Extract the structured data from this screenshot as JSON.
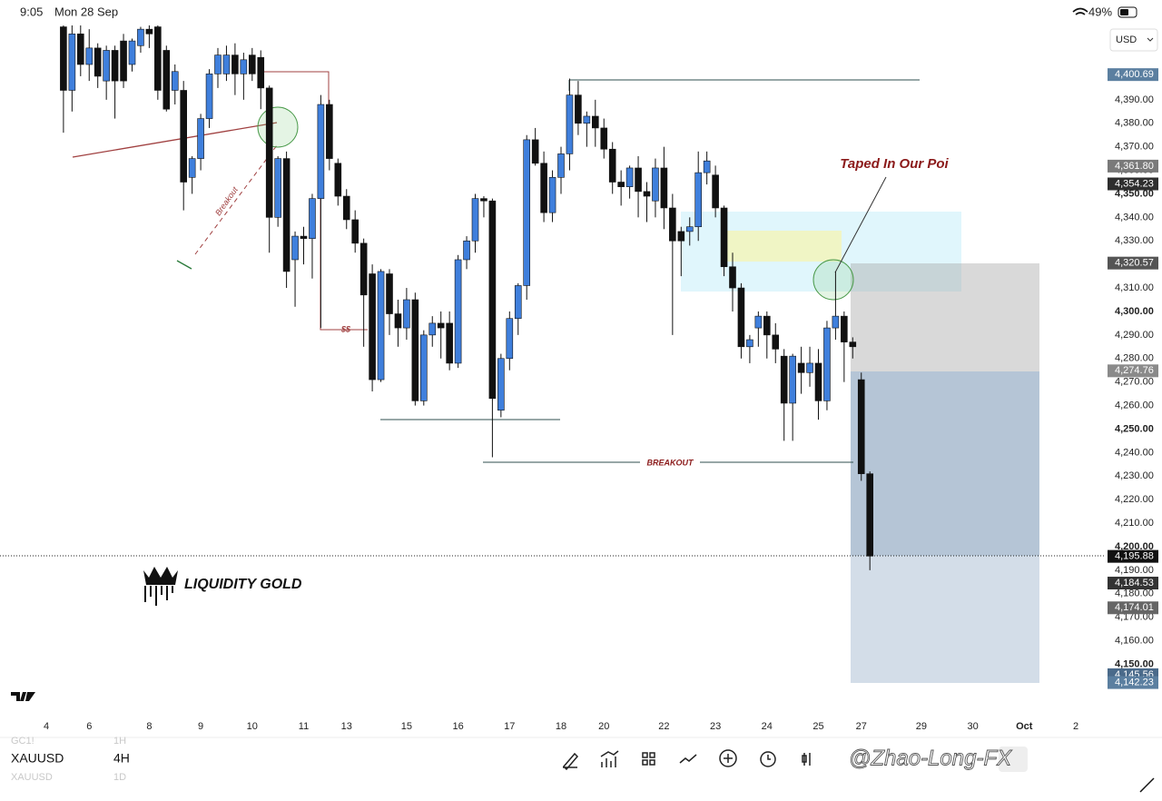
{
  "status_bar": {
    "time": "9:05",
    "date": "Mon 28 Sep",
    "battery": "49%"
  },
  "currency": "USD",
  "symbols": [
    {
      "name": "GC1!",
      "interval": "1H"
    },
    {
      "name": "XAUUSD",
      "interval": "4H"
    },
    {
      "name": "XAUUSD",
      "interval": "1D"
    }
  ],
  "watermark": "@Zhao-Long-FX",
  "chart_data": {
    "type": "candlestick",
    "categories": [
      "4",
      null,
      null,
      null,
      null,
      "6",
      null,
      null,
      null,
      null,
      null,
      null,
      "8",
      null,
      null,
      null,
      null,
      null,
      "9",
      null,
      null,
      null,
      null,
      null,
      "10",
      null,
      null,
      null,
      null,
      null,
      "11",
      null,
      null,
      null,
      null,
      "13",
      null,
      null,
      null,
      null,
      null,
      null,
      "15",
      null,
      null,
      null,
      null,
      null,
      "16",
      null,
      null,
      null,
      null,
      null,
      "17",
      null,
      null,
      null,
      null,
      null,
      "18",
      null,
      null,
      null,
      null,
      "20",
      null,
      null,
      null,
      null,
      null,
      null,
      "22",
      null,
      null,
      null,
      null,
      null,
      "23",
      null,
      null,
      null,
      null,
      null,
      "24",
      null,
      null,
      null,
      null,
      null,
      "25",
      null,
      null,
      null,
      null,
      "27",
      null,
      null,
      null,
      null,
      null,
      null,
      "29",
      null,
      null,
      null,
      null,
      null,
      "30",
      null,
      null,
      null,
      null,
      null,
      "Oct",
      null,
      null,
      null,
      null,
      null,
      "2"
    ],
    "open": [
      null,
      null,
      4421,
      4394,
      4418,
      4405,
      4412,
      4398,
      4411,
      4415,
      4405,
      4413,
      4420,
      4421,
      4411,
      4394,
      4394,
      4357,
      4365,
      4382,
      4401,
      4401,
      4409,
      4401,
      4409,
      4408,
      4395,
      4340,
      4365,
      4322,
      4332,
      4331,
      4348,
      4388,
      4363,
      4349,
      4339,
      4329,
      4316,
      4271,
      4316,
      4299,
      4293,
      4305,
      4262,
      4290,
      4295,
      4295,
      4278,
      4322,
      4330,
      4348,
      4347,
      4258,
      4280,
      4297,
      4311,
      4373,
      4363,
      4342,
      4357,
      4367,
      4392,
      4380,
      4383,
      4378,
      4369,
      4355,
      4353,
      4361,
      4351,
      4347,
      4361,
      4344,
      4334,
      4334,
      4336,
      4359,
      4358,
      4344,
      4319,
      4310,
      4285,
      4293,
      4298,
      4290,
      4281,
      4261,
      4278,
      4274,
      4278,
      4262,
      4293,
      4298,
      4287,
      4271,
      4231,
      null,
      null,
      null,
      null,
      null,
      null,
      null,
      null,
      null,
      null,
      null,
      null,
      null,
      null,
      null,
      null,
      null,
      null,
      null,
      null,
      null,
      null,
      null,
      null
    ],
    "high": [
      null,
      null,
      4422,
      4422,
      4422,
      4420,
      4414,
      4413,
      4413,
      4418,
      4416,
      4421,
      4422,
      4422,
      4413,
      4405,
      4398,
      4366,
      4384,
      4403,
      4412,
      4413,
      4414,
      4410,
      4412,
      4411,
      4396,
      4366,
      4368,
      4334,
      4336,
      4350,
      4392,
      4390,
      4365,
      4352,
      4343,
      4331,
      4320,
      4318,
      4318,
      4305,
      4310,
      4308,
      4292,
      4298,
      4300,
      4300,
      4324,
      4332,
      4350,
      4349,
      4348,
      4282,
      4300,
      4312,
      4375,
      4378,
      4368,
      4360,
      4370,
      4399,
      4398,
      4385,
      4390,
      4382,
      4372,
      4360,
      4362,
      4366,
      4355,
      4365,
      4370,
      4350,
      4336,
      4340,
      4368,
      4368,
      4362,
      4345,
      4325,
      4312,
      4290,
      4300,
      4300,
      4295,
      4284,
      4282,
      4285,
      4285,
      4284,
      4296,
      4317,
      4300,
      4289,
      4274,
      4232,
      null,
      null,
      null,
      null,
      null,
      null,
      null,
      null,
      null,
      null,
      null,
      null,
      null,
      null,
      null,
      null,
      null,
      null,
      null,
      null,
      null,
      null,
      null,
      null
    ],
    "low": [
      null,
      null,
      4376,
      4385,
      4400,
      4398,
      4395,
      4390,
      4382,
      4395,
      4402,
      4410,
      4412,
      4390,
      4385,
      4388,
      4343,
      4350,
      4360,
      4378,
      4395,
      4398,
      4392,
      4390,
      4398,
      4386,
      4325,
      4336,
      4310,
      4302,
      4320,
      4314,
      4293,
      4360,
      4345,
      4335,
      4325,
      4285,
      4266,
      4270,
      4290,
      4285,
      4288,
      4260,
      4260,
      4285,
      4280,
      4275,
      4276,
      4318,
      4325,
      4340,
      4238,
      4255,
      4275,
      4290,
      4305,
      4362,
      4338,
      4338,
      4350,
      4360,
      4375,
      4370,
      4370,
      4365,
      4350,
      4345,
      4348,
      4340,
      4338,
      4340,
      4335,
      4290,
      4315,
      4328,
      4330,
      4354,
      4340,
      4315,
      4300,
      4280,
      4278,
      4285,
      4280,
      4278,
      4245,
      4245,
      4265,
      4268,
      4254,
      4258,
      4288,
      4270,
      4280,
      4228,
      4190,
      null,
      null,
      null,
      null,
      null,
      null,
      null,
      null,
      null,
      null,
      null,
      null,
      null,
      null,
      null,
      null,
      null,
      null,
      null,
      null,
      null,
      null,
      null,
      null
    ],
    "close": [
      null,
      null,
      4394,
      4418,
      4405,
      4412,
      4400,
      4411,
      4398,
      4398,
      4415,
      4420,
      4418,
      4394,
      4386,
      4402,
      4355,
      4365,
      4382,
      4401,
      4409,
      4409,
      4401,
      4407,
      4401,
      4395,
      4340,
      4365,
      4317,
      4332,
      4331,
      4348,
      4388,
      4365,
      4349,
      4339,
      4329,
      4307,
      4271,
      4317,
      4299,
      4293,
      4305,
      4262,
      4290,
      4295,
      4293,
      4278,
      4322,
      4330,
      4348,
      4347,
      4263,
      4280,
      4297,
      4311,
      4373,
      4363,
      4342,
      4357,
      4367,
      4392,
      4380,
      4383,
      4378,
      4369,
      4355,
      4353,
      4361,
      4351,
      4349,
      4361,
      4344,
      4330,
      4330,
      4336,
      4359,
      4364,
      4344,
      4319,
      4310,
      4285,
      4288,
      4298,
      4290,
      4284,
      4261,
      4281,
      4274,
      4278,
      4262,
      4293,
      4298,
      4287,
      4285,
      4231,
      4196,
      null,
      null,
      null,
      null,
      null,
      null,
      null,
      null,
      null,
      null,
      null,
      null,
      null,
      null,
      null,
      null,
      null,
      null,
      null,
      null,
      null,
      null,
      null,
      null
    ],
    "up_color": "#3f7fdc",
    "down_color": "#111111",
    "ylim": [
      4127.4,
      4421.6
    ],
    "yticks": [
      {
        "value": 4150,
        "label": "4,150.00"
      },
      {
        "value": 4160,
        "label": "4,160.00"
      },
      {
        "value": 4170,
        "label": "4,170.00"
      },
      {
        "value": 4180,
        "label": "4,180.00"
      },
      {
        "value": 4190,
        "label": "4,190.00"
      },
      {
        "value": 4200,
        "label": "4,200.00"
      },
      {
        "value": 4210,
        "label": "4,210.00"
      },
      {
        "value": 4220,
        "label": "4,220.00"
      },
      {
        "value": 4230,
        "label": "4,230.00"
      },
      {
        "value": 4240,
        "label": "4,240.00"
      },
      {
        "value": 4250,
        "label": "4,250.00"
      },
      {
        "value": 4260,
        "label": "4,260.00"
      },
      {
        "value": 4270,
        "label": "4,270.00"
      },
      {
        "value": 4280,
        "label": "4,280.00"
      },
      {
        "value": 4290,
        "label": "4,290.00"
      },
      {
        "value": 4300,
        "label": "4,300.00"
      },
      {
        "value": 4310,
        "label": "4,310.00"
      },
      {
        "value": 4320,
        "label": "4,320.00"
      },
      {
        "value": 4330,
        "label": "4,330.00"
      },
      {
        "value": 4340,
        "label": "4,340.00"
      },
      {
        "value": 4350,
        "label": "4,350.00"
      },
      {
        "value": 4360,
        "label": "4,360.00"
      },
      {
        "value": 4370,
        "label": "4,370.00"
      },
      {
        "value": 4380,
        "label": "4,380.00"
      },
      {
        "value": 4390,
        "label": "4,390.00"
      }
    ],
    "grid": false,
    "price_labels": [
      {
        "value": 4400.69,
        "label": "4,400.69",
        "color": "#5b7fa0"
      },
      {
        "value": 4361.8,
        "label": "4,361.80",
        "color": "#7a7a7a"
      },
      {
        "value": 4354.23,
        "label": "4,354.23",
        "color": "#2e2e2e"
      },
      {
        "value": 4320.57,
        "label": "4,320.57",
        "color": "#555555"
      },
      {
        "value": 4274.76,
        "label": "4,274.76",
        "color": "#8a8a8a"
      },
      {
        "value": 4195.88,
        "label": "4,195.88",
        "color": "#111111"
      },
      {
        "value": 4184.53,
        "label": "4,184.53",
        "color": "#333333"
      },
      {
        "value": 4174.01,
        "label": "4,174.01",
        "color": "#666666"
      },
      {
        "value": 4145.56,
        "label": "4,145.56",
        "color": "#4a6a8a"
      },
      {
        "value": 4142.23,
        "label": "4,142.23",
        "color": "#5b7fa0"
      }
    ],
    "annotations": {
      "poi": "Taped In Our Poi",
      "breakout_diagonal": "Breakout",
      "liquidity": "$$",
      "breakout": "BREAKOUT",
      "brand": "LIQUIDITY GOLD"
    }
  }
}
